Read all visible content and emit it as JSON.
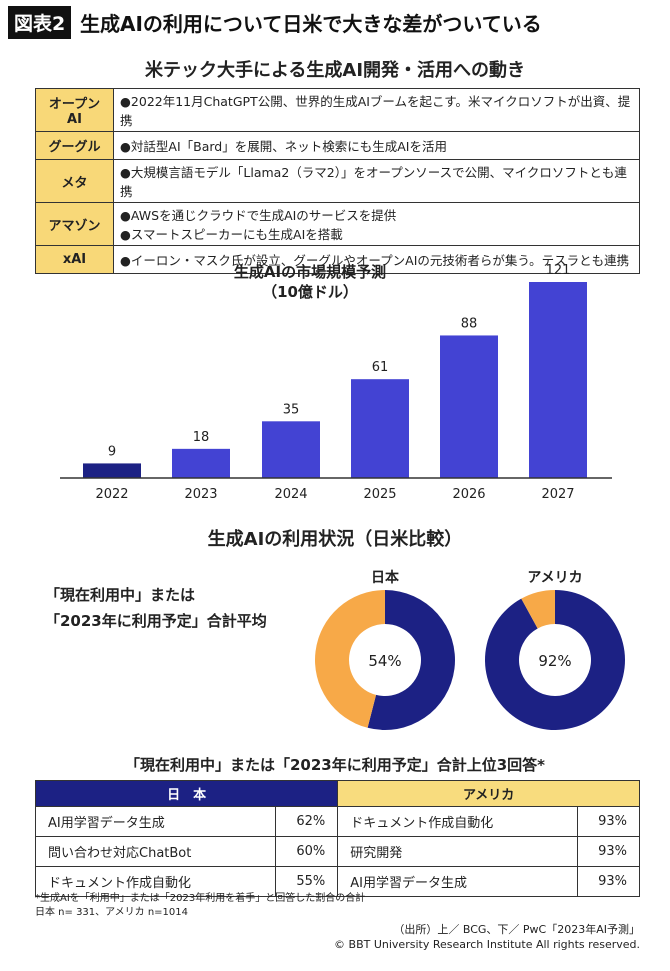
{
  "header": {
    "tag": "図表2",
    "title": "生成AIの利用について日米で大きな差がついている"
  },
  "companies": {
    "title": "米テック大手による生成AI開発・活用への動き",
    "rows": [
      {
        "name": "オープンAI",
        "lines": [
          "●2022年11月ChatGPT公開、世界的生成AIブームを起こす。米マイクロソフトが出資、提携"
        ]
      },
      {
        "name": "グーグル",
        "lines": [
          "●対話型AI「Bard」を展開、ネット検索にも生成AIを活用"
        ]
      },
      {
        "name": "メタ",
        "lines": [
          "●大規模言語モデル「Llama2（ラマ2）」をオープンソースで公開、マイクロソフトとも連携"
        ]
      },
      {
        "name": "アマゾン",
        "lines": [
          "●AWSを通じクラウドで生成AIのサービスを提供",
          "●スマートスピーカーにも生成AIを搭載"
        ]
      },
      {
        "name": "xAI",
        "lines": [
          "●イーロン・マスク氏が設立、グーグルやオープンAIの元技術者らが集う。テスラとも連携"
        ]
      }
    ]
  },
  "chart_data": [
    {
      "type": "bar",
      "title": "生成AIの市場規模予測",
      "subtitle": "（10億ドル）",
      "categories": [
        "2022",
        "2023",
        "2024",
        "2025",
        "2026",
        "2027"
      ],
      "values": [
        9,
        18,
        35,
        61,
        88,
        121
      ],
      "ylim": [
        0,
        121
      ],
      "grid": false,
      "colors": {
        "first": "#1c2184",
        "rest": "#4343d3"
      }
    },
    {
      "type": "pie",
      "title": "生成AIの利用状況（日米比較）",
      "note": [
        "「現在利用中」または",
        "「2023年に利用予定」合計平均"
      ],
      "charts": [
        {
          "label": "日本",
          "value": 54,
          "display": "54%"
        },
        {
          "label": "アメリカ",
          "value": 92,
          "display": "92%"
        }
      ],
      "colors": {
        "used": "#1c2184",
        "rest": "#f7a948"
      }
    }
  ],
  "top3": {
    "title": "「現在利用中」または「2023年に利用予定」合計上位3回答*",
    "japan": {
      "header": "日　本",
      "rows": [
        {
          "item": "AI用学習データ生成",
          "pct": "62%"
        },
        {
          "item": "問い合わせ対応ChatBot",
          "pct": "60%"
        },
        {
          "item": "ドキュメント作成自動化",
          "pct": "55%"
        }
      ]
    },
    "usa": {
      "header": "アメリカ",
      "rows": [
        {
          "item": "ドキュメント作成自動化",
          "pct": "93%"
        },
        {
          "item": "研究開発",
          "pct": "93%"
        },
        {
          "item": "AI用学習データ生成",
          "pct": "93%"
        }
      ]
    }
  },
  "footnotes": [
    "*生成AIを「利用中」または「2023年利用を着手」と回答した割合の合計",
    "日本 n= 331、アメリカ n=1014"
  ],
  "source": [
    "（出所）上／ BCG、下／ PwC「2023年AI予測」",
    "© BBT University Research Institute All rights reserved."
  ]
}
